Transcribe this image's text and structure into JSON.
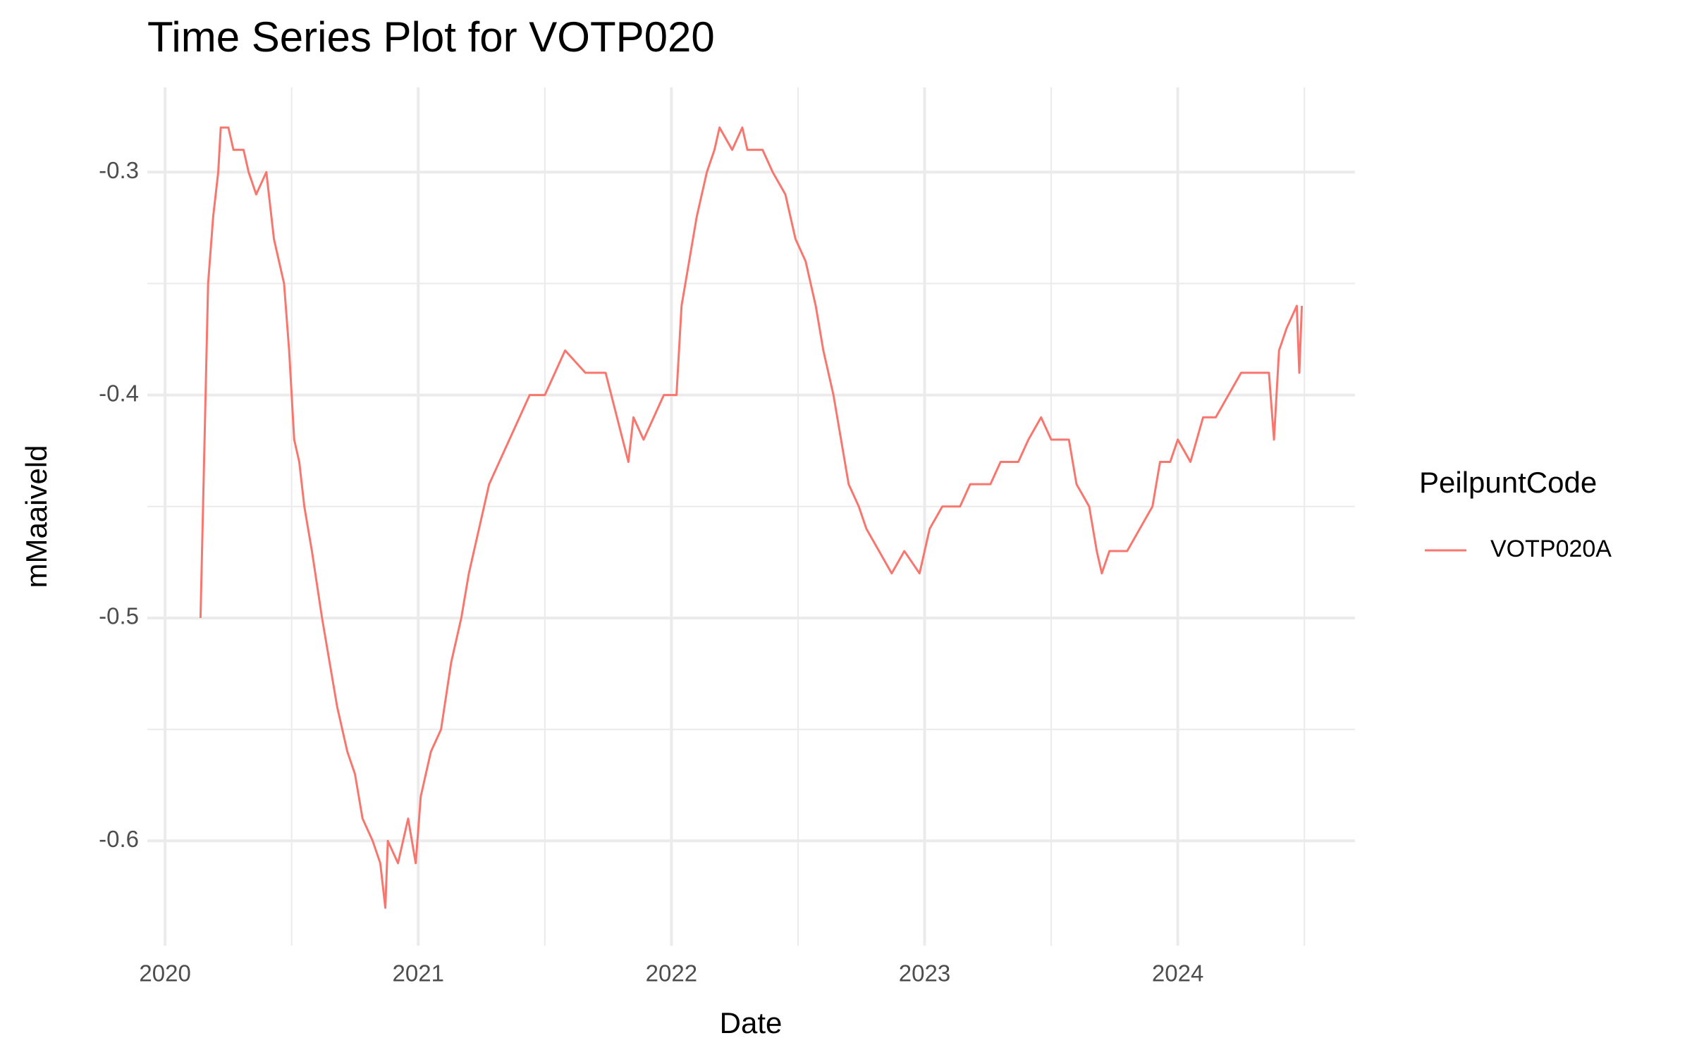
{
  "chart_data": {
    "type": "line",
    "title": "Time Series Plot for VOTP020",
    "x_label": "Date",
    "y_label": "mMaaiveld",
    "legend_title": "PeilpuntCode",
    "x": [
      2020.14,
      2020.17,
      2020.19,
      2020.21,
      2020.22,
      2020.25,
      2020.27,
      2020.31,
      2020.33,
      2020.36,
      2020.4,
      2020.41,
      2020.43,
      2020.45,
      2020.47,
      2020.49,
      2020.51,
      2020.53,
      2020.55,
      2020.58,
      2020.62,
      2020.65,
      2020.68,
      2020.72,
      2020.75,
      2020.78,
      2020.82,
      2020.85,
      2020.87,
      2020.88,
      2020.92,
      2020.96,
      2020.99,
      2021.01,
      2021.05,
      2021.09,
      2021.13,
      2021.17,
      2021.2,
      2021.24,
      2021.28,
      2021.32,
      2021.36,
      2021.4,
      2021.44,
      2021.5,
      2021.54,
      2021.58,
      2021.66,
      2021.74,
      2021.83,
      2021.85,
      2021.89,
      2021.93,
      2021.97,
      2022.02,
      2022.04,
      2022.07,
      2022.1,
      2022.12,
      2022.14,
      2022.17,
      2022.19,
      2022.24,
      2022.28,
      2022.3,
      2022.36,
      2022.4,
      2022.45,
      2022.49,
      2022.53,
      2022.57,
      2022.6,
      2022.64,
      2022.67,
      2022.7,
      2022.74,
      2022.77,
      2022.82,
      2022.87,
      2022.92,
      2022.98,
      2023.02,
      2023.07,
      2023.14,
      2023.18,
      2023.26,
      2023.3,
      2023.37,
      2023.41,
      2023.46,
      2023.5,
      2023.57,
      2023.6,
      2023.65,
      2023.68,
      2023.7,
      2023.73,
      2023.8,
      2023.85,
      2023.9,
      2023.93,
      2023.97,
      2024.0,
      2024.05,
      2024.1,
      2024.15,
      2024.2,
      2024.25,
      2024.3,
      2024.36,
      2024.38,
      2024.4,
      2024.43,
      2024.47,
      2024.48,
      2024.49
    ],
    "series": [
      {
        "name": "VOTP020A",
        "color": "#F8766D",
        "values": [
          -0.5,
          -0.35,
          -0.32,
          -0.3,
          -0.28,
          -0.28,
          -0.29,
          -0.29,
          -0.3,
          -0.31,
          -0.3,
          -0.31,
          -0.33,
          -0.34,
          -0.35,
          -0.38,
          -0.42,
          -0.43,
          -0.45,
          -0.47,
          -0.5,
          -0.52,
          -0.54,
          -0.56,
          -0.57,
          -0.59,
          -0.6,
          -0.61,
          -0.63,
          -0.6,
          -0.61,
          -0.59,
          -0.61,
          -0.58,
          -0.56,
          -0.55,
          -0.52,
          -0.5,
          -0.48,
          -0.46,
          -0.44,
          -0.43,
          -0.42,
          -0.41,
          -0.4,
          -0.4,
          -0.39,
          -0.38,
          -0.39,
          -0.39,
          -0.43,
          -0.41,
          -0.42,
          -0.41,
          -0.4,
          -0.4,
          -0.36,
          -0.34,
          -0.32,
          -0.31,
          -0.3,
          -0.29,
          -0.28,
          -0.29,
          -0.28,
          -0.29,
          -0.29,
          -0.3,
          -0.31,
          -0.33,
          -0.34,
          -0.36,
          -0.38,
          -0.4,
          -0.42,
          -0.44,
          -0.45,
          -0.46,
          -0.47,
          -0.48,
          -0.47,
          -0.48,
          -0.46,
          -0.45,
          -0.45,
          -0.44,
          -0.44,
          -0.43,
          -0.43,
          -0.42,
          -0.41,
          -0.42,
          -0.42,
          -0.44,
          -0.45,
          -0.47,
          -0.48,
          -0.47,
          -0.47,
          -0.46,
          -0.45,
          -0.43,
          -0.43,
          -0.42,
          -0.43,
          -0.41,
          -0.41,
          -0.4,
          -0.39,
          -0.39,
          -0.39,
          -0.42,
          -0.38,
          -0.37,
          -0.36,
          -0.39,
          -0.36
        ]
      }
    ],
    "xlim": [
      2019.93,
      2024.7
    ],
    "xticks": [
      2020,
      2021,
      2022,
      2023,
      2024
    ],
    "xminorticks": [
      2020.5,
      2021.5,
      2022.5,
      2023.5,
      2024.5
    ],
    "ylim": [
      -0.647,
      -0.262
    ],
    "yticks": [
      -0.6,
      -0.5,
      -0.4,
      -0.3
    ],
    "yminorticks": [
      -0.55,
      -0.45,
      -0.35
    ],
    "grid": true,
    "legend_position": "right"
  }
}
